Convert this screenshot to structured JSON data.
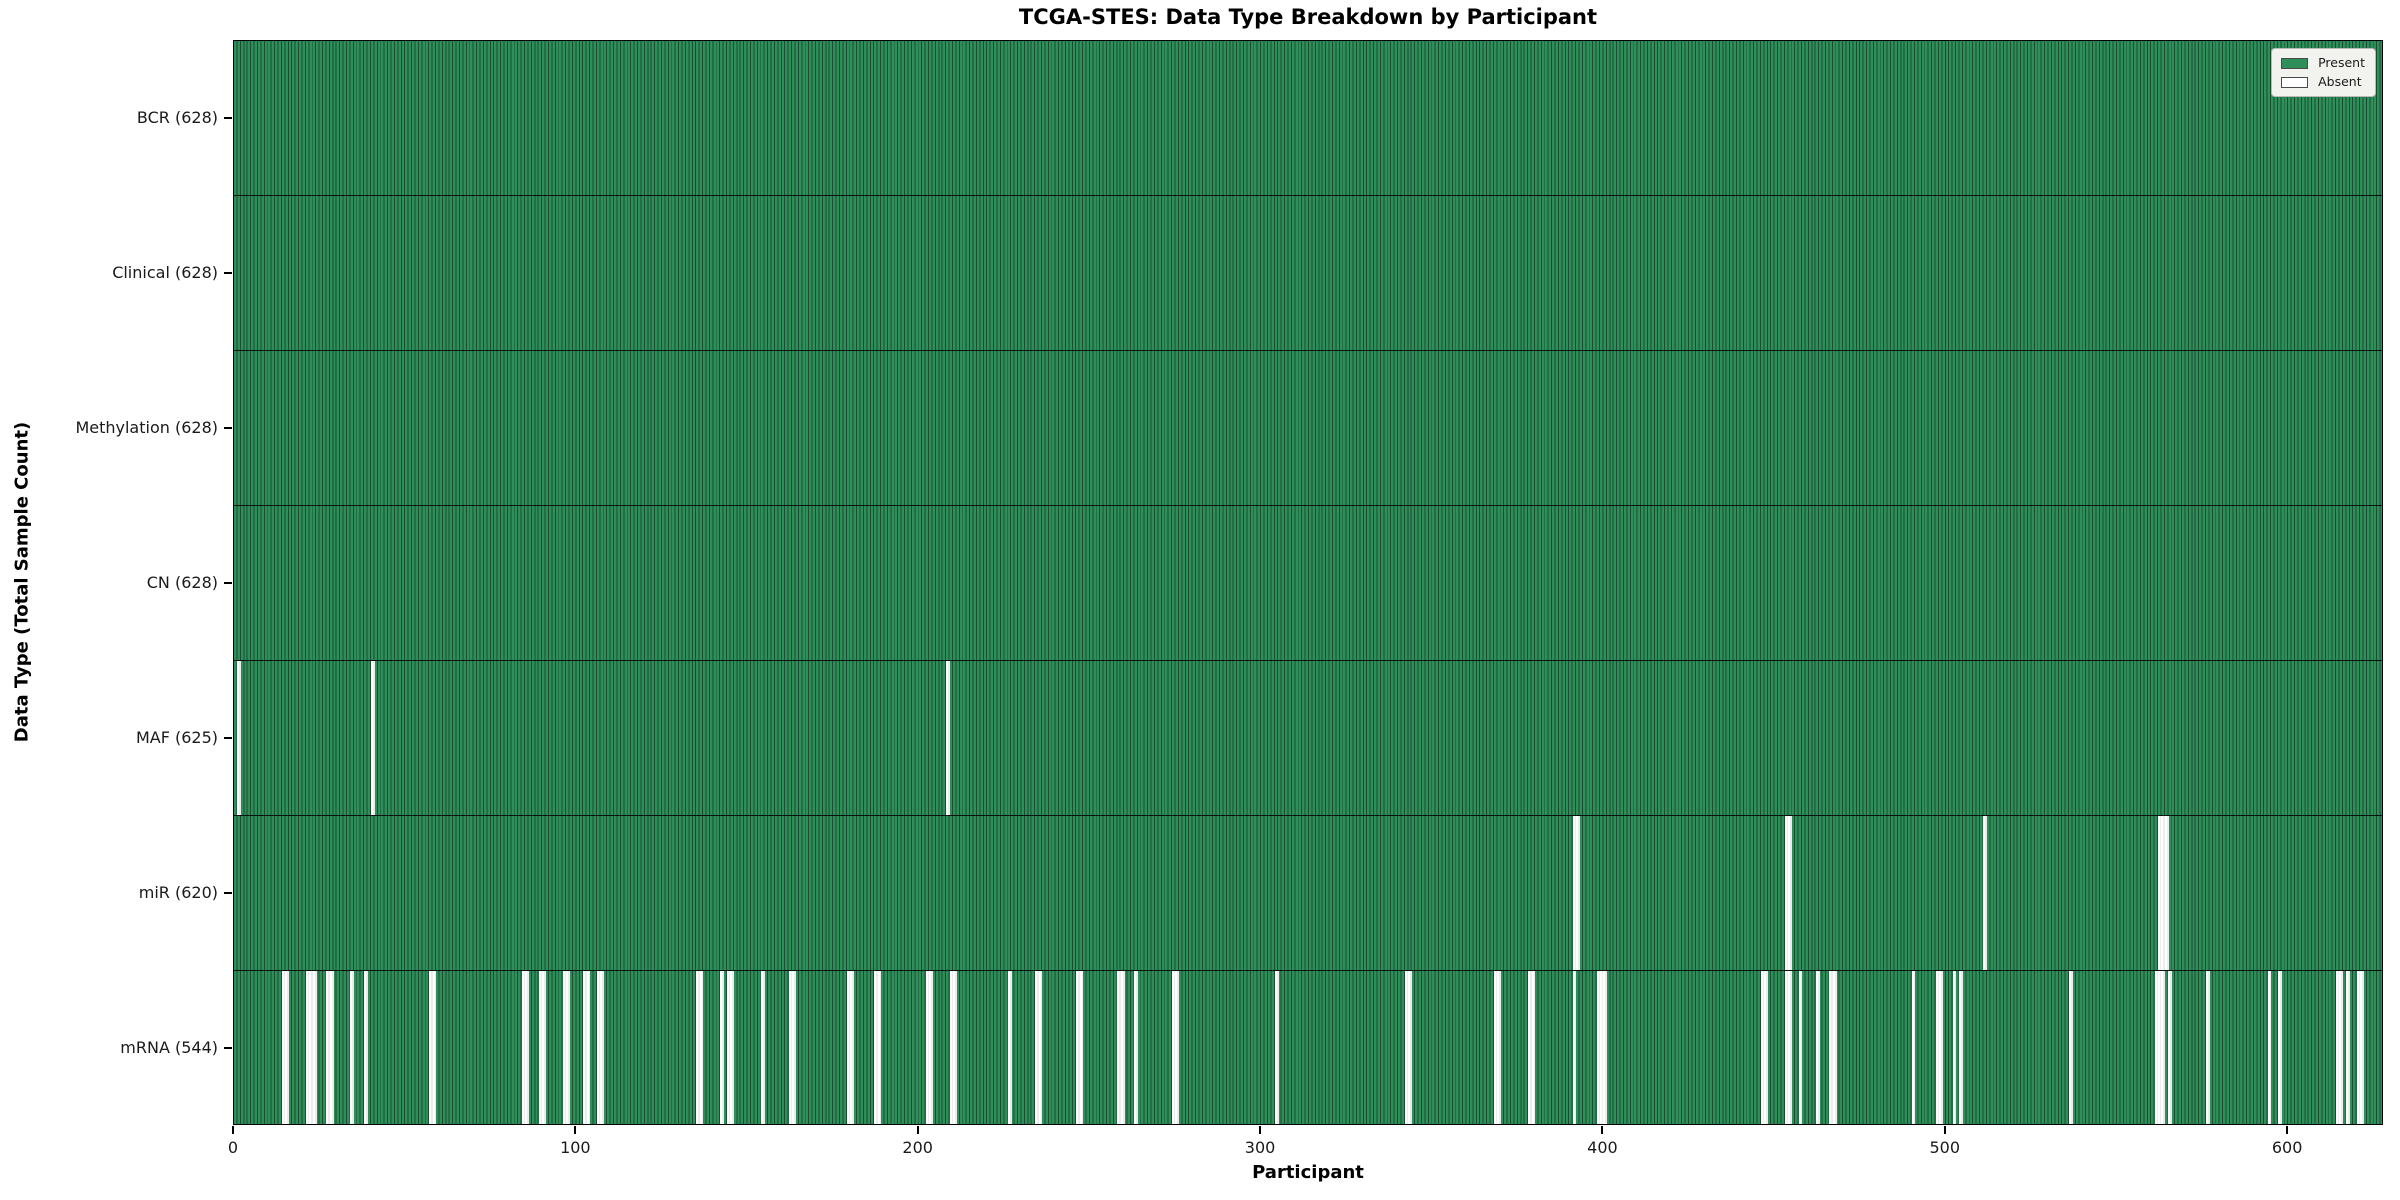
{
  "chart_data": {
    "type": "heatmap",
    "title": "TCGA-STES: Data Type Breakdown by Participant",
    "xlabel": "Participant",
    "ylabel": "Data Type (Total Sample Count)",
    "n_participants": 628,
    "x_ticks": [
      0,
      100,
      200,
      300,
      400,
      500,
      600
    ],
    "legend": [
      {
        "label": "Present",
        "color": "#2e8f5b"
      },
      {
        "label": "Absent",
        "color": "#ffffff"
      }
    ],
    "legend_position": "upper right",
    "grid": false,
    "rows": [
      {
        "label": "BCR (628)",
        "name": "BCR",
        "present_count": 628,
        "absent_participants": []
      },
      {
        "label": "Clinical (628)",
        "name": "Clinical",
        "present_count": 628,
        "absent_participants": []
      },
      {
        "label": "Methylation (628)",
        "name": "Methylation",
        "present_count": 628,
        "absent_participants": []
      },
      {
        "label": "CN (628)",
        "name": "CN",
        "present_count": 628,
        "absent_participants": []
      },
      {
        "label": "MAF (625)",
        "name": "MAF",
        "present_count": 625,
        "absent_participants": [
          1,
          40,
          208
        ]
      },
      {
        "label": "miR (620)",
        "name": "miR",
        "present_count": 620,
        "absent_participants": [
          391,
          392,
          453,
          454,
          511,
          562,
          563,
          564
        ]
      },
      {
        "label": "mRNA (544)",
        "name": "mRNA",
        "present_count": 544,
        "absent_participants": [
          14,
          15,
          21,
          22,
          23,
          27,
          28,
          34,
          38,
          57,
          58,
          84,
          85,
          89,
          90,
          96,
          97,
          102,
          103,
          106,
          107,
          135,
          136,
          142,
          144,
          145,
          154,
          162,
          163,
          179,
          180,
          187,
          188,
          202,
          203,
          209,
          210,
          226,
          234,
          235,
          246,
          247,
          258,
          259,
          263,
          274,
          275,
          304,
          342,
          343,
          368,
          369,
          378,
          379,
          391,
          398,
          399,
          400,
          446,
          447,
          453,
          454,
          457,
          462,
          466,
          467,
          490,
          497,
          498,
          502,
          504,
          536,
          561,
          562,
          563,
          565,
          576,
          594,
          597,
          614,
          615,
          617,
          620,
          621
        ]
      }
    ],
    "colors": {
      "present": "#2e8f5b",
      "present_edge": "#1b4c30",
      "absent": "#ffffff",
      "absent_edge": "#d8d8d8",
      "spine": "#000000",
      "text": "#1a1a1a"
    }
  }
}
